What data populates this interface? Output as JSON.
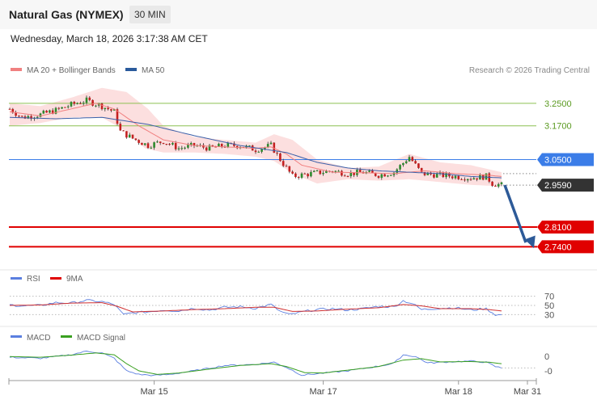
{
  "header": {
    "title": "Natural Gas (NYMEX)",
    "timeframe": "30 MIN",
    "datetime": "Wednesday, March 18, 2026 3:17:38 AM CET"
  },
  "legend_main": [
    {
      "label": "MA 20 + Bollinger Bands",
      "color": "#f08080"
    },
    {
      "label": "MA 50",
      "color": "#2a5a9c"
    }
  ],
  "copyright": "Research © 2026 Trading Central",
  "legend_rsi": [
    {
      "label": "RSI",
      "color": "#5b7fe0"
    },
    {
      "label": "9MA",
      "color": "#e00000"
    }
  ],
  "legend_macd": [
    {
      "label": "MACD",
      "color": "#5b7fe0"
    },
    {
      "label": "MACD Signal",
      "color": "#3aa020"
    }
  ],
  "chart_data": {
    "type": "candlestick",
    "y_range": [
      2.675,
      3.33
    ],
    "levels": [
      {
        "value": 3.25,
        "label": "3.2500",
        "color": "#8cc050",
        "style": "resistance"
      },
      {
        "value": 3.17,
        "label": "3.1700",
        "color": "#8cc050",
        "style": "resistance"
      },
      {
        "value": 3.05,
        "label": "3.0500",
        "color": "#3b7de8",
        "style": "pivot"
      },
      {
        "value": 2.959,
        "label": "2.9590",
        "color": "#333333",
        "style": "last"
      },
      {
        "value": 2.81,
        "label": "2.8100",
        "color": "#e00000",
        "style": "support"
      },
      {
        "value": 2.74,
        "label": "2.7400",
        "color": "#e00000",
        "style": "support"
      }
    ],
    "x_ticks": [
      "Mar 15",
      "Mar 17",
      "Mar 18",
      "Mar 31"
    ],
    "x_tick_index": [
      47,
      102,
      146,
      170
    ],
    "n_slots": 171,
    "price_anchors": [
      [
        0,
        3.23
      ],
      [
        4,
        3.2
      ],
      [
        10,
        3.21
      ],
      [
        15,
        3.225
      ],
      [
        20,
        3.245
      ],
      [
        25,
        3.26
      ],
      [
        30,
        3.24
      ],
      [
        34,
        3.22
      ],
      [
        36,
        3.15
      ],
      [
        40,
        3.125
      ],
      [
        45,
        3.1
      ],
      [
        50,
        3.115
      ],
      [
        55,
        3.09
      ],
      [
        60,
        3.1
      ],
      [
        65,
        3.09
      ],
      [
        70,
        3.1
      ],
      [
        75,
        3.1
      ],
      [
        80,
        3.085
      ],
      [
        85,
        3.1
      ],
      [
        88,
        3.05
      ],
      [
        92,
        2.99
      ],
      [
        98,
        3.0
      ],
      [
        105,
        3.01
      ],
      [
        110,
        3.0
      ],
      [
        115,
        3.005
      ],
      [
        120,
        2.995
      ],
      [
        125,
        3.005
      ],
      [
        130,
        3.06
      ],
      [
        134,
        3.0
      ],
      [
        140,
        2.995
      ],
      [
        145,
        2.99
      ],
      [
        150,
        2.985
      ],
      [
        155,
        2.99
      ],
      [
        157,
        2.965
      ],
      [
        160,
        2.959
      ]
    ],
    "ma20_anchors": [
      [
        0,
        3.22
      ],
      [
        10,
        3.205
      ],
      [
        20,
        3.23
      ],
      [
        28,
        3.25
      ],
      [
        34,
        3.23
      ],
      [
        42,
        3.17
      ],
      [
        50,
        3.12
      ],
      [
        60,
        3.1
      ],
      [
        70,
        3.095
      ],
      [
        80,
        3.09
      ],
      [
        85,
        3.095
      ],
      [
        90,
        3.07
      ],
      [
        95,
        3.03
      ],
      [
        105,
        3.005
      ],
      [
        115,
        3.003
      ],
      [
        125,
        3.0
      ],
      [
        135,
        3.01
      ],
      [
        145,
        3.0
      ],
      [
        155,
        2.995
      ],
      [
        160,
        2.99
      ]
    ],
    "bb_upper_anchors": [
      [
        0,
        3.25
      ],
      [
        10,
        3.24
      ],
      [
        20,
        3.27
      ],
      [
        30,
        3.305
      ],
      [
        38,
        3.29
      ],
      [
        45,
        3.23
      ],
      [
        50,
        3.17
      ],
      [
        60,
        3.13
      ],
      [
        70,
        3.12
      ],
      [
        80,
        3.11
      ],
      [
        86,
        3.14
      ],
      [
        92,
        3.12
      ],
      [
        100,
        3.05
      ],
      [
        110,
        3.02
      ],
      [
        120,
        3.025
      ],
      [
        130,
        3.07
      ],
      [
        140,
        3.04
      ],
      [
        150,
        3.03
      ],
      [
        160,
        3.005
      ]
    ],
    "bb_lower_anchors": [
      [
        0,
        3.17
      ],
      [
        10,
        3.18
      ],
      [
        20,
        3.2
      ],
      [
        30,
        3.2
      ],
      [
        38,
        3.15
      ],
      [
        44,
        3.09
      ],
      [
        50,
        3.075
      ],
      [
        60,
        3.075
      ],
      [
        70,
        3.07
      ],
      [
        80,
        3.06
      ],
      [
        86,
        3.045
      ],
      [
        92,
        3.0
      ],
      [
        100,
        2.965
      ],
      [
        110,
        2.98
      ],
      [
        120,
        2.975
      ],
      [
        130,
        2.98
      ],
      [
        140,
        2.97
      ],
      [
        150,
        2.96
      ],
      [
        160,
        2.955
      ]
    ],
    "ma50_anchors": [
      [
        0,
        3.2
      ],
      [
        15,
        3.195
      ],
      [
        30,
        3.2
      ],
      [
        45,
        3.175
      ],
      [
        60,
        3.135
      ],
      [
        75,
        3.1
      ],
      [
        90,
        3.075
      ],
      [
        100,
        3.04
      ],
      [
        110,
        3.02
      ],
      [
        120,
        3.01
      ],
      [
        130,
        3.005
      ],
      [
        140,
        3.0
      ],
      [
        150,
        2.99
      ],
      [
        160,
        2.985
      ]
    ],
    "rsi_range": [
      15,
      85
    ],
    "rsi_levels": [
      70,
      50,
      30
    ],
    "rsi_anchors": [
      [
        0,
        51
      ],
      [
        5,
        49
      ],
      [
        10,
        50
      ],
      [
        15,
        56
      ],
      [
        20,
        55
      ],
      [
        25,
        61
      ],
      [
        30,
        58
      ],
      [
        34,
        52
      ],
      [
        37,
        30
      ],
      [
        40,
        34
      ],
      [
        45,
        36
      ],
      [
        50,
        40
      ],
      [
        55,
        38
      ],
      [
        60,
        44
      ],
      [
        65,
        40
      ],
      [
        70,
        46
      ],
      [
        75,
        47
      ],
      [
        80,
        44
      ],
      [
        85,
        52
      ],
      [
        88,
        37
      ],
      [
        91,
        30
      ],
      [
        96,
        37
      ],
      [
        100,
        41
      ],
      [
        105,
        43
      ],
      [
        110,
        40
      ],
      [
        115,
        43
      ],
      [
        120,
        48
      ],
      [
        125,
        47
      ],
      [
        128,
        60
      ],
      [
        131,
        54
      ],
      [
        134,
        41
      ],
      [
        140,
        44
      ],
      [
        145,
        45
      ],
      [
        150,
        40
      ],
      [
        155,
        43
      ],
      [
        158,
        30
      ],
      [
        160,
        29
      ]
    ],
    "rsi_ma_anchors": [
      [
        0,
        50
      ],
      [
        10,
        51
      ],
      [
        20,
        55
      ],
      [
        30,
        56
      ],
      [
        35,
        48
      ],
      [
        40,
        36
      ],
      [
        50,
        38
      ],
      [
        60,
        41
      ],
      [
        70,
        43
      ],
      [
        80,
        46
      ],
      [
        86,
        46
      ],
      [
        92,
        37
      ],
      [
        100,
        38
      ],
      [
        110,
        42
      ],
      [
        120,
        45
      ],
      [
        128,
        52
      ],
      [
        134,
        49
      ],
      [
        140,
        43
      ],
      [
        150,
        43
      ],
      [
        156,
        41
      ],
      [
        160,
        38
      ]
    ],
    "macd_ref_labels": [
      "0",
      "-0"
    ],
    "macd_range": [
      -0.055,
      0.04
    ],
    "macd_anchors": [
      [
        0,
        0.008
      ],
      [
        10,
        0.005
      ],
      [
        20,
        0.015
      ],
      [
        25,
        0.025
      ],
      [
        30,
        0.02
      ],
      [
        34,
        0.005
      ],
      [
        38,
        -0.03
      ],
      [
        42,
        -0.04
      ],
      [
        47,
        -0.043
      ],
      [
        52,
        -0.04
      ],
      [
        60,
        -0.03
      ],
      [
        70,
        -0.015
      ],
      [
        80,
        -0.012
      ],
      [
        86,
        -0.006
      ],
      [
        90,
        -0.02
      ],
      [
        95,
        -0.042
      ],
      [
        100,
        -0.038
      ],
      [
        110,
        -0.03
      ],
      [
        120,
        -0.017
      ],
      [
        125,
        -0.009
      ],
      [
        128,
        0.015
      ],
      [
        132,
        0.01
      ],
      [
        136,
        -0.008
      ],
      [
        145,
        -0.004
      ],
      [
        150,
        -0.003
      ],
      [
        155,
        -0.006
      ],
      [
        158,
        -0.018
      ],
      [
        160,
        -0.022
      ]
    ],
    "macd_signal_anchors": [
      [
        0,
        0.01
      ],
      [
        10,
        0.008
      ],
      [
        20,
        0.014
      ],
      [
        28,
        0.02
      ],
      [
        34,
        0.015
      ],
      [
        38,
        -0.01
      ],
      [
        42,
        -0.03
      ],
      [
        48,
        -0.04
      ],
      [
        55,
        -0.036
      ],
      [
        65,
        -0.025
      ],
      [
        75,
        -0.015
      ],
      [
        85,
        -0.01
      ],
      [
        90,
        -0.018
      ],
      [
        96,
        -0.035
      ],
      [
        102,
        -0.036
      ],
      [
        110,
        -0.028
      ],
      [
        120,
        -0.018
      ],
      [
        128,
        0.0
      ],
      [
        134,
        0.004
      ],
      [
        140,
        -0.005
      ],
      [
        150,
        -0.004
      ],
      [
        156,
        -0.006
      ],
      [
        160,
        -0.01
      ]
    ]
  }
}
